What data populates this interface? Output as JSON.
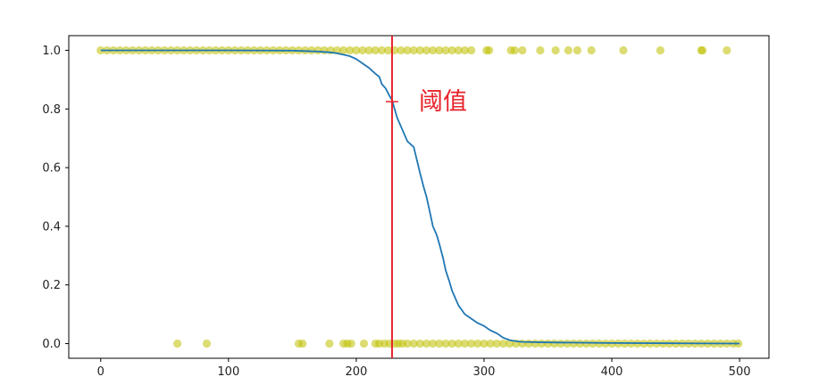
{
  "chart_data": {
    "type": "scatter",
    "title": "",
    "xlabel": "",
    "ylabel": "",
    "xlim": [
      -25,
      523
    ],
    "ylim": [
      -0.05,
      1.05
    ],
    "xticks": [
      0,
      100,
      200,
      300,
      400,
      500
    ],
    "yticks": [
      0.0,
      0.2,
      0.4,
      0.6,
      0.8,
      1.0
    ],
    "xtick_labels": [
      "0",
      "100",
      "200",
      "300",
      "400",
      "500"
    ],
    "ytick_labels": [
      "0.0",
      "0.2",
      "0.4",
      "0.6",
      "0.8",
      "1.0"
    ],
    "grid": false,
    "threshold": {
      "x": 228,
      "marker_y": 0.825,
      "label": "阈值",
      "color": "#e8232a"
    },
    "series": [
      {
        "kind": "scatter",
        "color": "#bfbf00",
        "alpha": 0.55,
        "points_top": [
          0,
          5,
          10,
          15,
          20,
          25,
          30,
          35,
          40,
          45,
          50,
          55,
          60,
          65,
          70,
          75,
          80,
          85,
          90,
          95,
          100,
          105,
          110,
          115,
          120,
          125,
          130,
          135,
          140,
          145,
          150,
          155,
          160,
          165,
          170,
          175,
          180,
          185,
          190,
          195,
          200,
          205,
          210,
          215,
          220,
          225,
          230,
          235,
          240,
          245,
          250,
          255,
          260,
          265,
          270,
          275,
          280,
          285,
          290,
          302,
          304,
          321,
          324,
          330,
          344,
          356,
          366,
          373,
          384,
          409,
          438,
          470,
          471,
          490
        ],
        "points_bottom": [
          60,
          83,
          155,
          158,
          179,
          190,
          193,
          196,
          206,
          215,
          218,
          222,
          226,
          230,
          233,
          236,
          240,
          245,
          250,
          255,
          260,
          265,
          270,
          275,
          280,
          285,
          290,
          295,
          300,
          305,
          310,
          315,
          320,
          325,
          330,
          335,
          340,
          345,
          350,
          355,
          360,
          365,
          370,
          375,
          380,
          385,
          390,
          395,
          400,
          405,
          410,
          415,
          420,
          425,
          430,
          435,
          440,
          445,
          450,
          455,
          460,
          465,
          470,
          475,
          480,
          485,
          490,
          495,
          499
        ]
      },
      {
        "kind": "line",
        "color": "#1f77b4",
        "x": [
          0,
          50,
          100,
          150,
          170,
          180,
          185,
          190,
          195,
          200,
          205,
          210,
          215,
          218,
          220,
          223,
          226,
          228,
          230,
          232,
          236,
          240,
          245,
          250,
          253,
          255,
          258,
          260,
          263,
          265,
          268,
          270,
          273,
          275,
          278,
          280,
          285,
          290,
          295,
          300,
          305,
          310,
          315,
          320,
          325,
          330,
          350,
          400,
          450,
          500
        ],
        "y": [
          1.0,
          1.0,
          1.0,
          0.999,
          0.996,
          0.993,
          0.99,
          0.985,
          0.98,
          0.97,
          0.955,
          0.94,
          0.92,
          0.91,
          0.885,
          0.87,
          0.845,
          0.83,
          0.8,
          0.77,
          0.73,
          0.69,
          0.67,
          0.58,
          0.53,
          0.5,
          0.44,
          0.4,
          0.37,
          0.34,
          0.29,
          0.25,
          0.21,
          0.18,
          0.15,
          0.13,
          0.1,
          0.085,
          0.07,
          0.06,
          0.045,
          0.035,
          0.02,
          0.012,
          0.008,
          0.006,
          0.004,
          0.002,
          0.001,
          0.0
        ]
      }
    ]
  }
}
